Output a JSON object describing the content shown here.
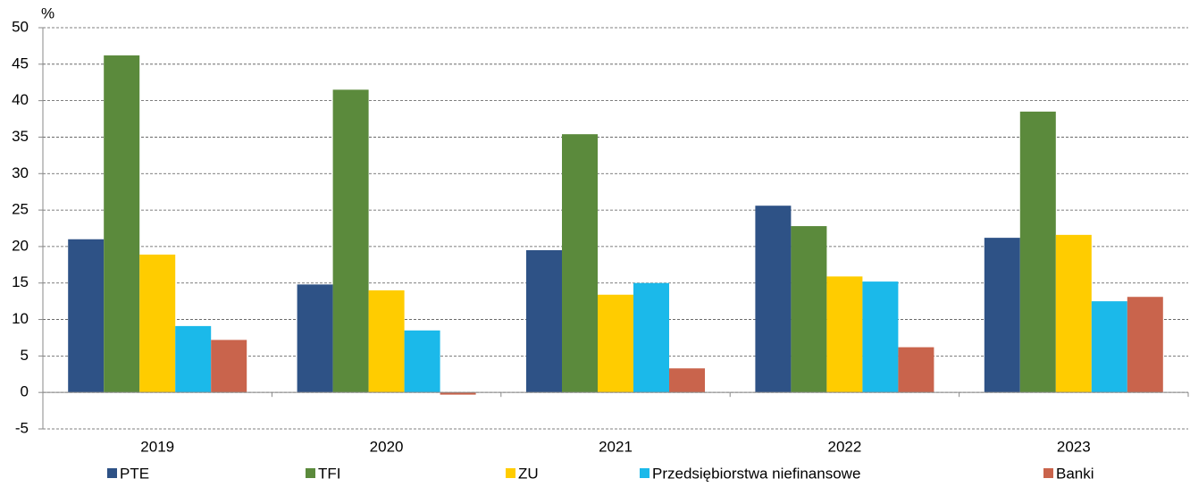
{
  "chart_data": {
    "type": "bar",
    "y_axis_title": "%",
    "categories": [
      "2019",
      "2020",
      "2021",
      "2022",
      "2023"
    ],
    "series": [
      {
        "name": "PTE",
        "color": "#2e5286",
        "values": [
          21.0,
          14.8,
          19.5,
          25.6,
          21.2
        ]
      },
      {
        "name": "TFI",
        "color": "#5b8a3c",
        "values": [
          46.2,
          41.5,
          35.4,
          22.8,
          38.5
        ]
      },
      {
        "name": "ZU",
        "color": "#ffcc00",
        "values": [
          18.9,
          14.0,
          13.4,
          15.9,
          21.6
        ]
      },
      {
        "name": "Przedsiębiorstwa niefinansowe",
        "color": "#1bb9ea",
        "values": [
          9.1,
          8.5,
          15.0,
          15.2,
          12.5
        ]
      },
      {
        "name": "Banki",
        "color": "#c9644c",
        "values": [
          7.2,
          -0.3,
          3.3,
          6.2,
          13.1
        ]
      }
    ],
    "ylim": [
      -5,
      50
    ],
    "yticks": [
      -5,
      0,
      5,
      10,
      15,
      20,
      25,
      30,
      35,
      40,
      45,
      50
    ],
    "grid": true,
    "legend": "bottom"
  }
}
